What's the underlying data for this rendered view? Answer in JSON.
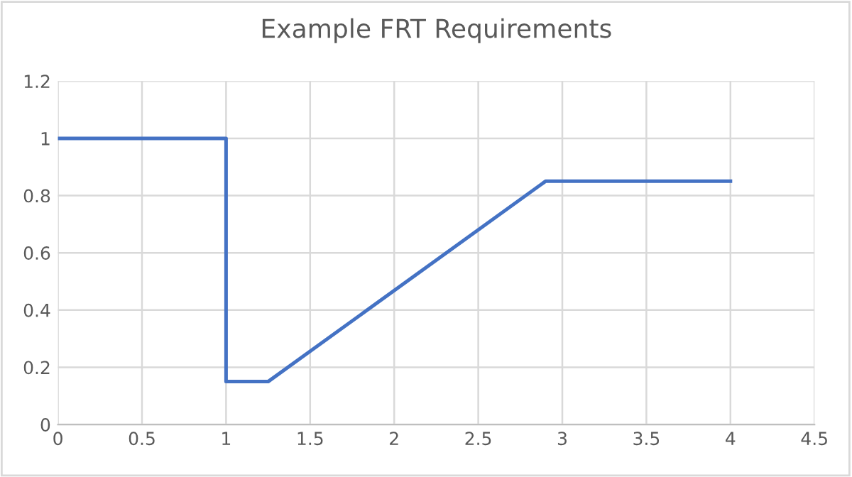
{
  "chart_data": {
    "type": "line",
    "title": "Example FRT Requirements",
    "x": [
      0,
      1,
      1,
      1.25,
      2.9,
      4
    ],
    "series": [
      {
        "color": "#4472c4",
        "values": [
          1,
          1,
          0.15,
          0.15,
          0.85,
          0.85
        ]
      }
    ],
    "xlim": [
      0,
      4.5
    ],
    "xticks": [
      0,
      0.5,
      1,
      1.5,
      2,
      2.5,
      3,
      3.5,
      4,
      4.5
    ],
    "ylim": [
      0,
      1.2
    ],
    "yticks": [
      0,
      0.2,
      0.4,
      0.6,
      0.8,
      1,
      1.2
    ],
    "grid": true,
    "marker": "none",
    "line_style": "solid"
  }
}
